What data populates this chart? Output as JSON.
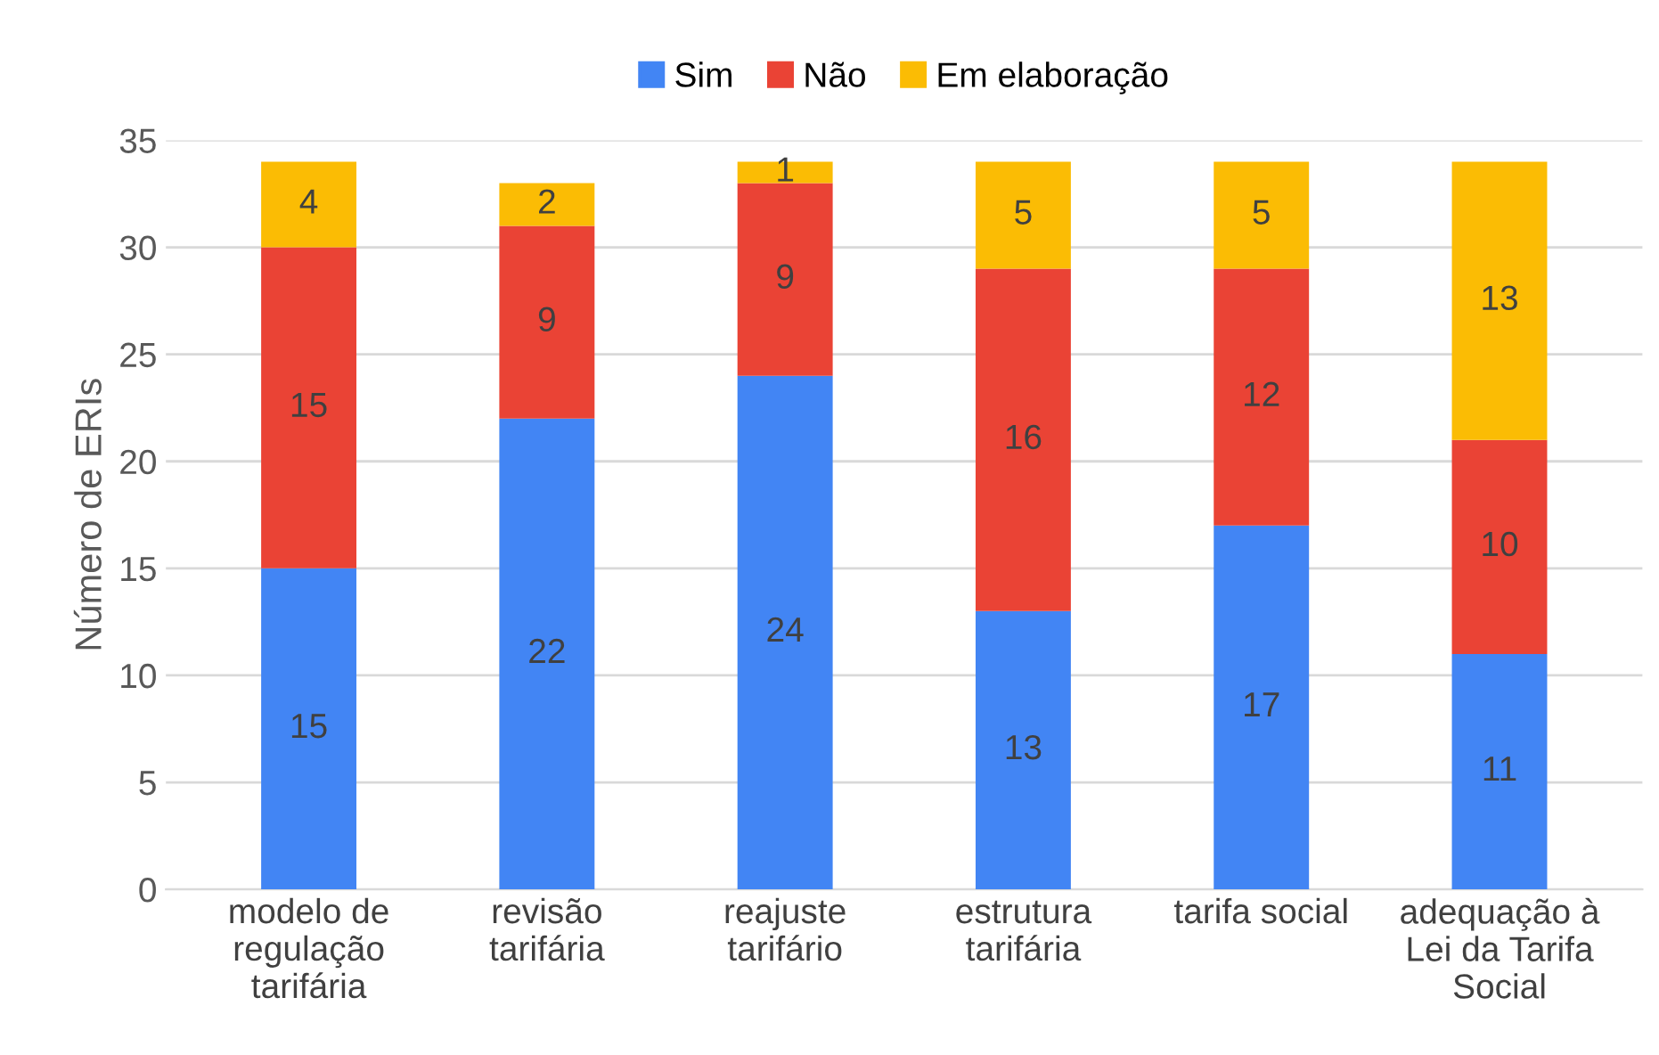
{
  "chart_data": {
    "type": "bar",
    "stacked": true,
    "ylabel": "Número de ERIs",
    "categories": [
      "modelo de\nregulação\ntarifária",
      "revisão\ntarifária",
      "reajuste\ntarifário",
      "estrutura\ntarifária",
      "tarifa social",
      "adequação à\nLei da Tarifa\nSocial"
    ],
    "series": [
      {
        "name": "Sim",
        "color": "#4285f4",
        "values": [
          15,
          22,
          24,
          13,
          17,
          11
        ]
      },
      {
        "name": "Não",
        "color": "#ea4335",
        "values": [
          15,
          9,
          9,
          16,
          12,
          10
        ]
      },
      {
        "name": "Em elaboração",
        "color": "#fbbc04",
        "values": [
          4,
          2,
          1,
          5,
          5,
          13
        ]
      }
    ],
    "ylim": [
      0,
      35
    ],
    "yticks": [
      0,
      5,
      10,
      15,
      20,
      25,
      30,
      35
    ],
    "grid": "y",
    "legend": "top",
    "data_labels": true
  }
}
